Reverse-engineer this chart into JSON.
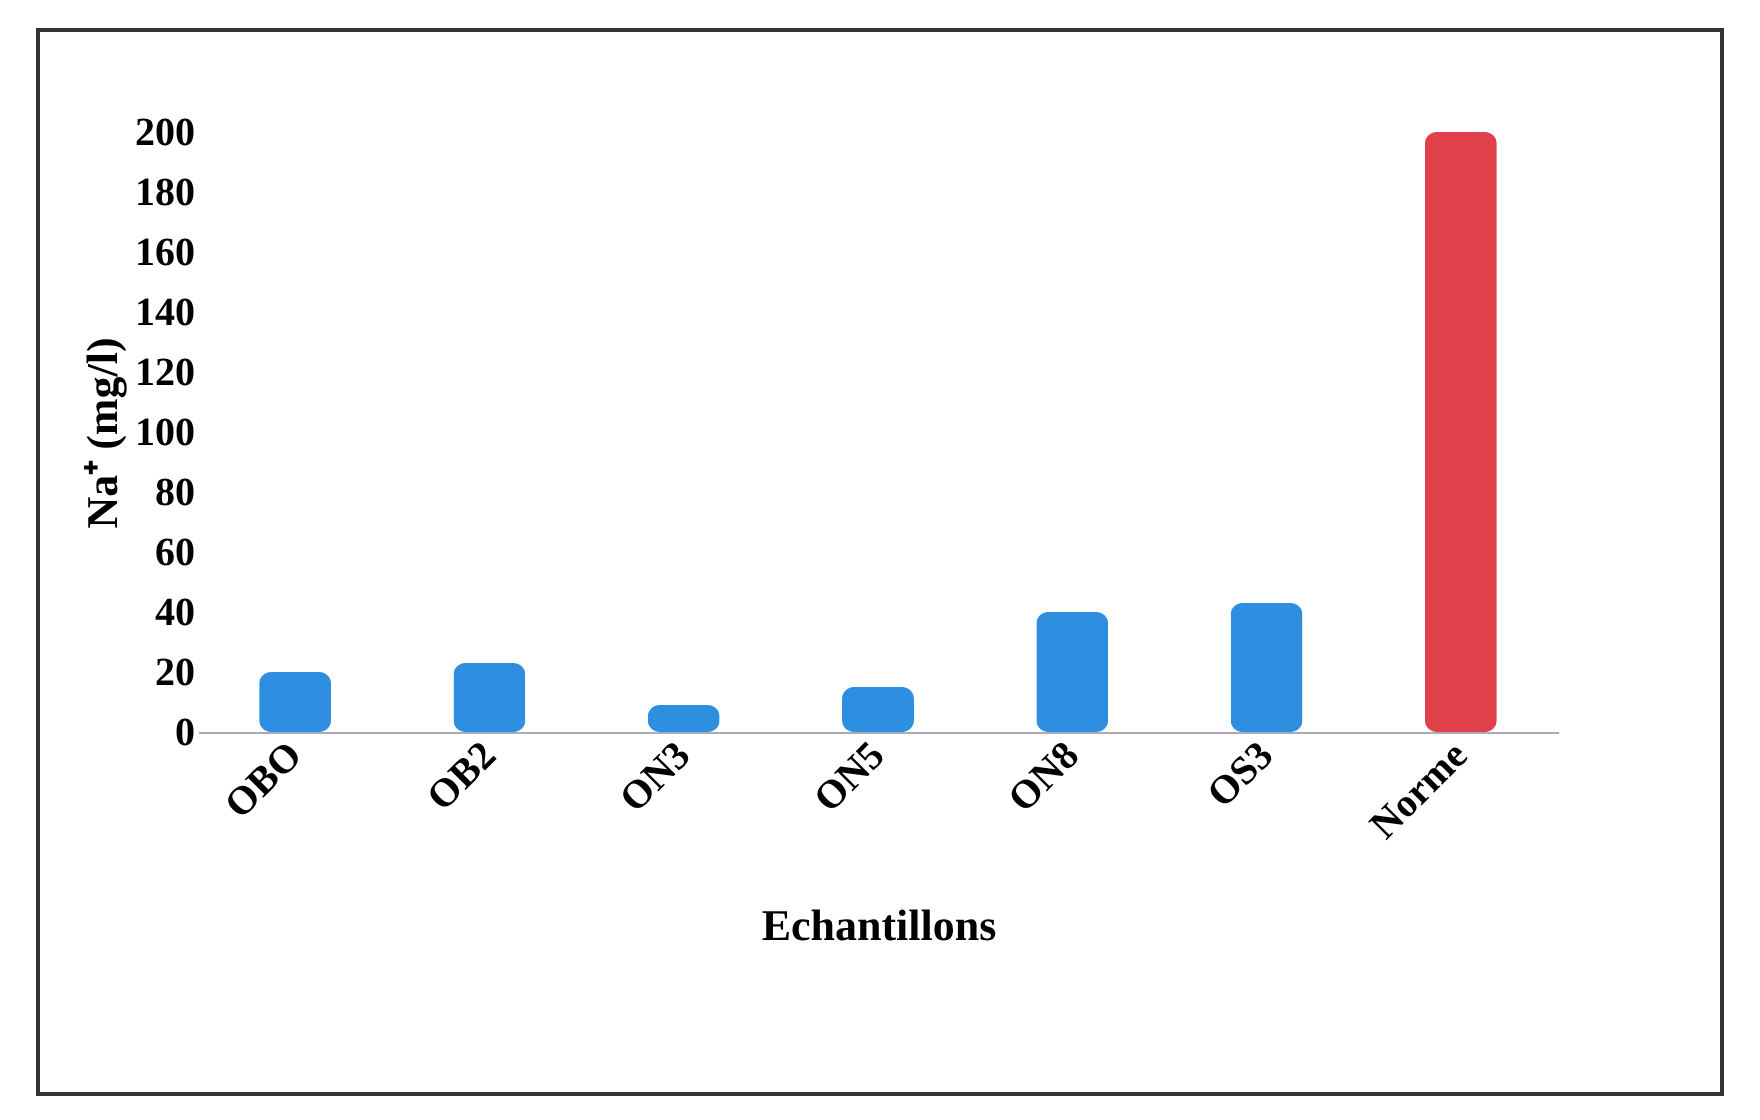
{
  "chart_data": {
    "type": "bar",
    "xlabel": "Echantillons",
    "ylabel": "Na⁺ (mg/l)",
    "categories": [
      "OBO",
      "OB2",
      "ON3",
      "ON5",
      "ON8",
      "OS3",
      "Norme"
    ],
    "values": [
      20,
      23,
      9,
      15,
      40,
      43,
      200
    ],
    "colors": [
      "#2e8ee0",
      "#2e8ee0",
      "#2e8ee0",
      "#2e8ee0",
      "#2e8ee0",
      "#2e8ee0",
      "#e0404a"
    ],
    "ylim": [
      0,
      200
    ],
    "yticks": [
      0,
      20,
      40,
      60,
      80,
      100,
      120,
      140,
      160,
      180,
      200
    ],
    "grid": false
  }
}
